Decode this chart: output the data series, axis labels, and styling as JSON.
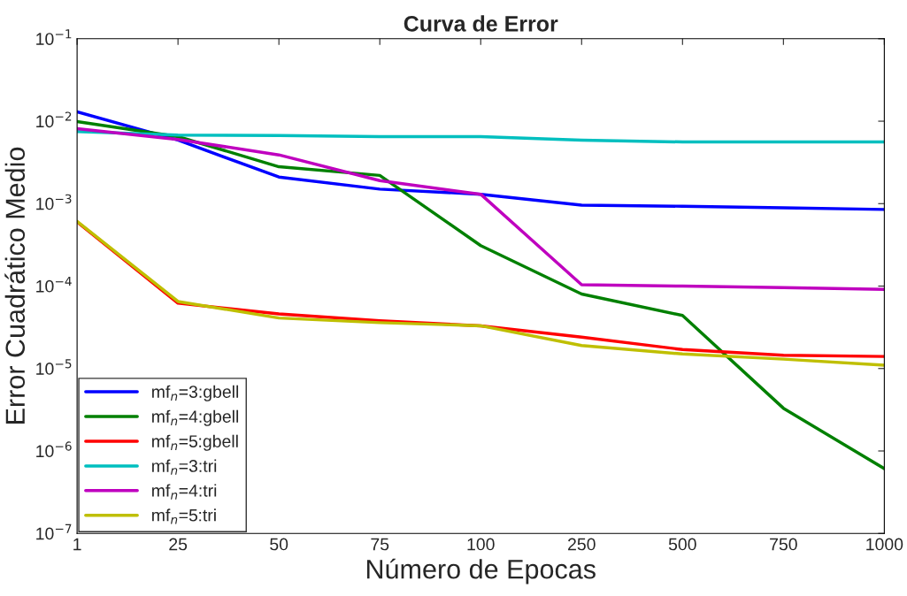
{
  "chart_data": {
    "type": "line",
    "title": "Curva de Error",
    "xlabel": "Número de Epocas",
    "ylabel": "Error Cuadrático Medio",
    "categories": [
      "1",
      "25",
      "50",
      "75",
      "100",
      "250",
      "500",
      "750",
      "1000"
    ],
    "log": "y",
    "ylim": [
      1e-07,
      0.1
    ],
    "yticks": [
      {
        "value": 1e-07,
        "label": "10$^{−7}$"
      },
      {
        "value": 1e-06,
        "label": "10$^{−6}$"
      },
      {
        "value": 1e-05,
        "label": "10$^{−5}$"
      },
      {
        "value": 0.0001,
        "label": "10$^{−4}$"
      },
      {
        "value": 0.001,
        "label": "10$^{−3}$"
      },
      {
        "value": 0.01,
        "label": "10$^{−2}$"
      },
      {
        "value": 0.1,
        "label": "10$^{−1}$"
      }
    ],
    "legend": "bottom left",
    "grid": false,
    "marker": "none",
    "line_style": "solid",
    "series": [
      {
        "name": "mf$_{n}$=3:gbell",
        "color": "#0000ff",
        "values": [
          0.013,
          0.0059,
          0.0021,
          0.0015,
          0.0013,
          0.00096,
          0.00093,
          0.00089,
          0.00085
        ]
      },
      {
        "name": "mf$_{n}$=4:gbell",
        "color": "#008000",
        "values": [
          0.0099,
          0.0065,
          0.0028,
          0.0022,
          0.00031,
          8e-05,
          4.4e-05,
          3.3e-06,
          6.1e-07
        ]
      },
      {
        "name": "mf$_{n}$=5:gbell",
        "color": "#ff0000",
        "values": [
          0.0006,
          6.2e-05,
          4.6e-05,
          3.8e-05,
          3.3e-05,
          2.4e-05,
          1.7e-05,
          1.45e-05,
          1.4e-05
        ]
      },
      {
        "name": "mf$_{n}$=3:tri",
        "color": "#00bfbf",
        "values": [
          0.0075,
          0.0068,
          0.0067,
          0.0065,
          0.0065,
          0.0059,
          0.0056,
          0.0056,
          0.0056
        ]
      },
      {
        "name": "mf$_{n}$=4:tri",
        "color": "#bf00bf",
        "values": [
          0.0081,
          0.006,
          0.0039,
          0.0019,
          0.0013,
          0.000104,
          0.0001,
          9.6e-05,
          9.1e-05
        ]
      },
      {
        "name": "mf$_{n}$=5:tri",
        "color": "#bfbf00",
        "values": [
          0.00061,
          6.5e-05,
          4.1e-05,
          3.6e-05,
          3.3e-05,
          1.9e-05,
          1.5e-05,
          1.3e-05,
          1.1e-05
        ]
      }
    ]
  }
}
